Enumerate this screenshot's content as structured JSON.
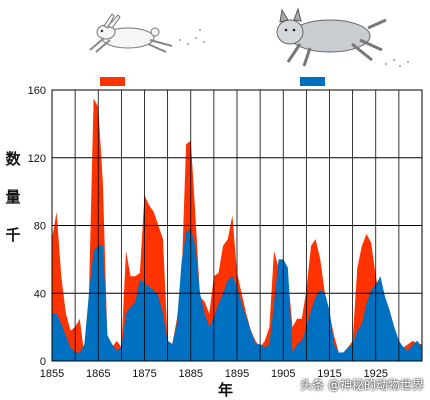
{
  "colors": {
    "hare": "#ff3300",
    "lynx": "#0070c0",
    "grid": "#000000"
  },
  "icons": {
    "left": "hare-icon",
    "right": "lynx-icon"
  },
  "watermark": "头条 @神秘的动物世界",
  "chart_data": {
    "type": "area",
    "title": "",
    "xlabel": "年",
    "ylabel": "数量千",
    "ylabel_chars": [
      "数",
      "量",
      "千"
    ],
    "xlim": [
      1855,
      1935
    ],
    "ylim": [
      0,
      160
    ],
    "xticks": [
      1855,
      1865,
      1875,
      1885,
      1895,
      1905,
      1915,
      1925
    ],
    "yticks": [
      0,
      40,
      80,
      120,
      160
    ],
    "grid": true,
    "legend": "top, colored bars under icons",
    "series": [
      {
        "color": "#ff3300",
        "x": [
          1855,
          1856,
          1857,
          1858,
          1859,
          1860,
          1861,
          1862,
          1863,
          1864,
          1865,
          1866,
          1867,
          1868,
          1869,
          1870,
          1871,
          1872,
          1873,
          1874,
          1875,
          1876,
          1877,
          1878,
          1879,
          1880,
          1881,
          1882,
          1883,
          1884,
          1885,
          1886,
          1887,
          1888,
          1889,
          1890,
          1891,
          1892,
          1893,
          1894,
          1895,
          1896,
          1897,
          1898,
          1899,
          1900,
          1901,
          1902,
          1903,
          1904,
          1905,
          1906,
          1907,
          1908,
          1909,
          1910,
          1911,
          1912,
          1913,
          1914,
          1915,
          1916,
          1917,
          1918,
          1919,
          1920,
          1921,
          1922,
          1923,
          1924,
          1925,
          1926,
          1927,
          1928,
          1929,
          1930,
          1931,
          1932,
          1933,
          1934,
          1935
        ],
        "values": [
          72,
          88,
          50,
          28,
          18,
          20,
          25,
          3,
          40,
          155,
          150,
          105,
          10,
          8,
          12,
          8,
          65,
          50,
          50,
          52,
          98,
          92,
          88,
          80,
          72,
          12,
          10,
          25,
          48,
          128,
          130,
          86,
          38,
          35,
          28,
          50,
          52,
          68,
          72,
          86,
          52,
          40,
          28,
          18,
          12,
          8,
          12,
          20,
          65,
          55,
          60,
          50,
          20,
          25,
          25,
          42,
          68,
          72,
          60,
          40,
          28,
          15,
          5,
          5,
          8,
          12,
          55,
          68,
          75,
          70,
          50,
          35,
          15,
          10,
          10,
          8,
          8,
          10,
          12,
          10,
          10
        ]
      },
      {
        "color": "#0070c0",
        "x": [
          1855,
          1856,
          1857,
          1858,
          1859,
          1860,
          1861,
          1862,
          1863,
          1864,
          1865,
          1866,
          1867,
          1868,
          1869,
          1870,
          1871,
          1872,
          1873,
          1874,
          1875,
          1876,
          1877,
          1878,
          1879,
          1880,
          1881,
          1882,
          1883,
          1884,
          1885,
          1886,
          1887,
          1888,
          1889,
          1890,
          1891,
          1892,
          1893,
          1894,
          1895,
          1896,
          1897,
          1898,
          1899,
          1900,
          1901,
          1902,
          1903,
          1904,
          1905,
          1906,
          1907,
          1908,
          1909,
          1910,
          1911,
          1912,
          1913,
          1914,
          1915,
          1916,
          1917,
          1918,
          1919,
          1920,
          1921,
          1922,
          1923,
          1924,
          1925,
          1926,
          1927,
          1928,
          1929,
          1930,
          1931,
          1932,
          1933,
          1934,
          1935
        ],
        "values": [
          28,
          28,
          22,
          15,
          8,
          5,
          5,
          10,
          40,
          65,
          68,
          68,
          15,
          10,
          6,
          8,
          28,
          32,
          35,
          48,
          46,
          44,
          42,
          38,
          28,
          12,
          10,
          22,
          58,
          76,
          78,
          68,
          40,
          28,
          20,
          26,
          34,
          40,
          48,
          50,
          44,
          34,
          26,
          18,
          10,
          10,
          8,
          10,
          34,
          60,
          60,
          55,
          5,
          10,
          12,
          20,
          30,
          38,
          42,
          40,
          30,
          10,
          5,
          5,
          8,
          10,
          18,
          22,
          34,
          42,
          45,
          50,
          38,
          30,
          20,
          12,
          8,
          6,
          10,
          12,
          8
        ]
      }
    ]
  }
}
